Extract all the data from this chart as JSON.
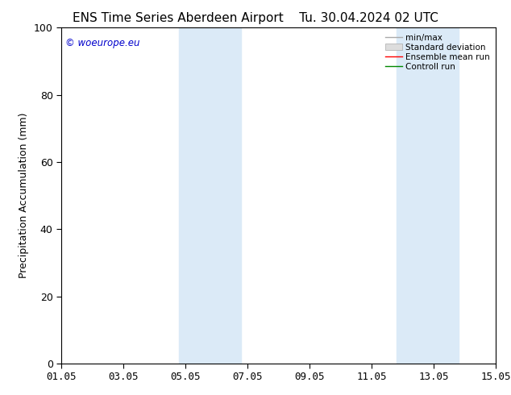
{
  "title_left": "ENS Time Series Aberdeen Airport",
  "title_right": "Tu. 30.04.2024 02 UTC",
  "ylabel": "Precipitation Accumulation (mm)",
  "xlabel": "",
  "ylim": [
    0,
    100
  ],
  "xlim": [
    0,
    14
  ],
  "xtick_labels": [
    "01.05",
    "03.05",
    "05.05",
    "07.05",
    "09.05",
    "11.05",
    "13.05",
    "15.05"
  ],
  "xtick_positions": [
    0,
    2,
    4,
    6,
    8,
    10,
    12,
    14
  ],
  "ytick_labels": [
    "0",
    "20",
    "40",
    "60",
    "80",
    "100"
  ],
  "ytick_positions": [
    0,
    20,
    40,
    60,
    80,
    100
  ],
  "shaded_bands": [
    {
      "x_start": 3.8,
      "x_end": 5.8,
      "color": "#dbeaf7",
      "alpha": 1.0
    },
    {
      "x_start": 10.8,
      "x_end": 12.8,
      "color": "#dbeaf7",
      "alpha": 1.0
    }
  ],
  "watermark": "© woeurope.eu",
  "watermark_color": "#0000cc",
  "background_color": "#ffffff",
  "plot_background": "#ffffff",
  "legend_entries": [
    "min/max",
    "Standard deviation",
    "Ensemble mean run",
    "Controll run"
  ],
  "legend_line_colors": [
    "#aaaaaa",
    "#cccccc",
    "#ff0000",
    "#008800"
  ],
  "title_fontsize": 11,
  "axis_fontsize": 9,
  "tick_fontsize": 9
}
